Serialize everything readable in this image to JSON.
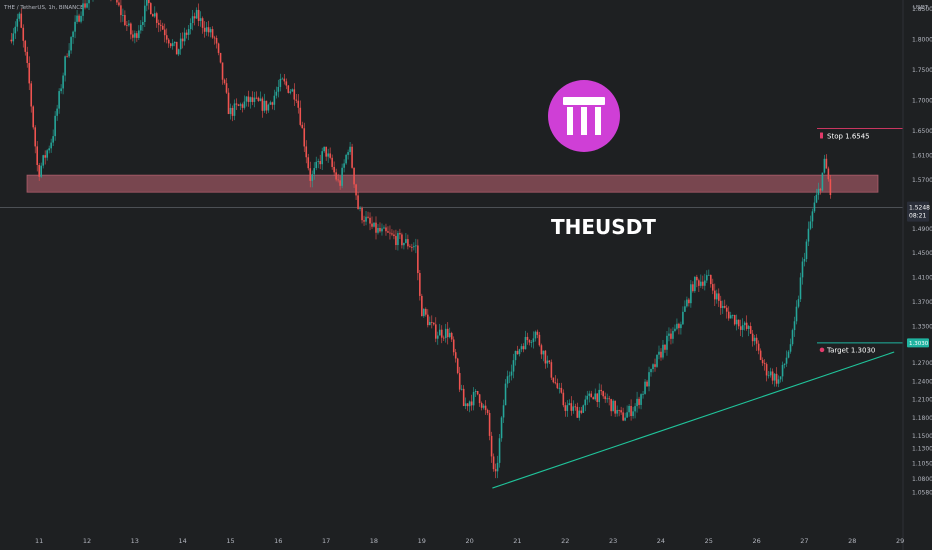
{
  "header": {
    "title": "THE / TetherUS, 1h, BINANCE"
  },
  "symbol_label": "THEUSDT",
  "currency_label": "USDT",
  "colors": {
    "background": "#1e2022",
    "up": "#26a69a",
    "down": "#ef5350",
    "zone": "#c26675",
    "stop": "#e23a6a",
    "target": "#1fb3a0",
    "trendline": "#20c39a",
    "logo": "#cf3fd6"
  },
  "price_axis": {
    "ticks": [
      "1.9000",
      "1.8500",
      "1.8000",
      "1.7500",
      "1.7000",
      "1.6500",
      "1.6100",
      "1.5700",
      "1.5248",
      "1.4900",
      "1.4500",
      "1.4100",
      "1.3700",
      "1.3300",
      "1.3030",
      "1.2700",
      "1.2400",
      "1.2100",
      "1.1800",
      "1.1500",
      "1.1300",
      "1.1050",
      "1.0800",
      "1.0580"
    ],
    "current_price": "1.5248",
    "countdown": "08:21",
    "stop_tag": "1.6545",
    "target_tag": "1.3030"
  },
  "time_axis": {
    "ticks": [
      "11",
      "12",
      "13",
      "14",
      "15",
      "16",
      "17",
      "18",
      "19",
      "20",
      "21",
      "22",
      "23",
      "24",
      "25",
      "26",
      "27",
      "28",
      "29"
    ]
  },
  "annotations": {
    "stop": {
      "label": "Stop",
      "value": "1.6545"
    },
    "target": {
      "label": "Target",
      "value": "1.3030"
    }
  },
  "chart_data": {
    "type": "candlestick",
    "title": "THE / TetherUS, 1h, BINANCE",
    "interval": "1h",
    "x_unit": "day of month",
    "price_range": [
      1.05,
      1.91
    ],
    "zone": {
      "low": 1.55,
      "high": 1.578
    },
    "levels": {
      "stop": 1.6545,
      "target": 1.303,
      "last": 1.5248
    },
    "trendline": [
      {
        "x": 20.5,
        "y": 1.065
      },
      {
        "x": 28.9,
        "y": 1.288
      }
    ],
    "approx_path": [
      {
        "x": 10.4,
        "y": 1.8
      },
      {
        "x": 10.6,
        "y": 1.84
      },
      {
        "x": 10.8,
        "y": 1.74
      },
      {
        "x": 11.0,
        "y": 1.58
      },
      {
        "x": 11.3,
        "y": 1.64
      },
      {
        "x": 11.6,
        "y": 1.78
      },
      {
        "x": 11.9,
        "y": 1.85
      },
      {
        "x": 12.2,
        "y": 1.88
      },
      {
        "x": 12.4,
        "y": 1.9
      },
      {
        "x": 12.7,
        "y": 1.85
      },
      {
        "x": 13.0,
        "y": 1.8
      },
      {
        "x": 13.3,
        "y": 1.86
      },
      {
        "x": 13.6,
        "y": 1.82
      },
      {
        "x": 13.9,
        "y": 1.78
      },
      {
        "x": 14.3,
        "y": 1.84
      },
      {
        "x": 14.7,
        "y": 1.8
      },
      {
        "x": 15.0,
        "y": 1.68
      },
      {
        "x": 15.4,
        "y": 1.7
      },
      {
        "x": 15.8,
        "y": 1.69
      },
      {
        "x": 16.1,
        "y": 1.73
      },
      {
        "x": 16.4,
        "y": 1.71
      },
      {
        "x": 16.7,
        "y": 1.57
      },
      {
        "x": 17.0,
        "y": 1.62
      },
      {
        "x": 17.3,
        "y": 1.56
      },
      {
        "x": 17.5,
        "y": 1.63
      },
      {
        "x": 17.7,
        "y": 1.52
      },
      {
        "x": 18.0,
        "y": 1.49
      },
      {
        "x": 18.3,
        "y": 1.48
      },
      {
        "x": 18.6,
        "y": 1.47
      },
      {
        "x": 18.9,
        "y": 1.46
      },
      {
        "x": 19.0,
        "y": 1.36
      },
      {
        "x": 19.3,
        "y": 1.32
      },
      {
        "x": 19.6,
        "y": 1.32
      },
      {
        "x": 19.9,
        "y": 1.2
      },
      {
        "x": 20.2,
        "y": 1.22
      },
      {
        "x": 20.4,
        "y": 1.18
      },
      {
        "x": 20.55,
        "y": 1.07
      },
      {
        "x": 20.8,
        "y": 1.25
      },
      {
        "x": 21.1,
        "y": 1.3
      },
      {
        "x": 21.4,
        "y": 1.32
      },
      {
        "x": 21.7,
        "y": 1.26
      },
      {
        "x": 22.0,
        "y": 1.2
      },
      {
        "x": 22.3,
        "y": 1.19
      },
      {
        "x": 22.6,
        "y": 1.22
      },
      {
        "x": 22.9,
        "y": 1.21
      },
      {
        "x": 23.2,
        "y": 1.18
      },
      {
        "x": 23.5,
        "y": 1.2
      },
      {
        "x": 23.8,
        "y": 1.25
      },
      {
        "x": 24.1,
        "y": 1.3
      },
      {
        "x": 24.4,
        "y": 1.33
      },
      {
        "x": 24.7,
        "y": 1.4
      },
      {
        "x": 25.0,
        "y": 1.41
      },
      {
        "x": 25.3,
        "y": 1.36
      },
      {
        "x": 25.6,
        "y": 1.34
      },
      {
        "x": 25.9,
        "y": 1.32
      },
      {
        "x": 26.2,
        "y": 1.26
      },
      {
        "x": 26.5,
        "y": 1.24
      },
      {
        "x": 26.8,
        "y": 1.32
      },
      {
        "x": 27.0,
        "y": 1.44
      },
      {
        "x": 27.2,
        "y": 1.52
      },
      {
        "x": 27.35,
        "y": 1.56
      },
      {
        "x": 27.45,
        "y": 1.6
      },
      {
        "x": 27.55,
        "y": 1.56
      },
      {
        "x": 27.6,
        "y": 1.5248
      }
    ]
  }
}
